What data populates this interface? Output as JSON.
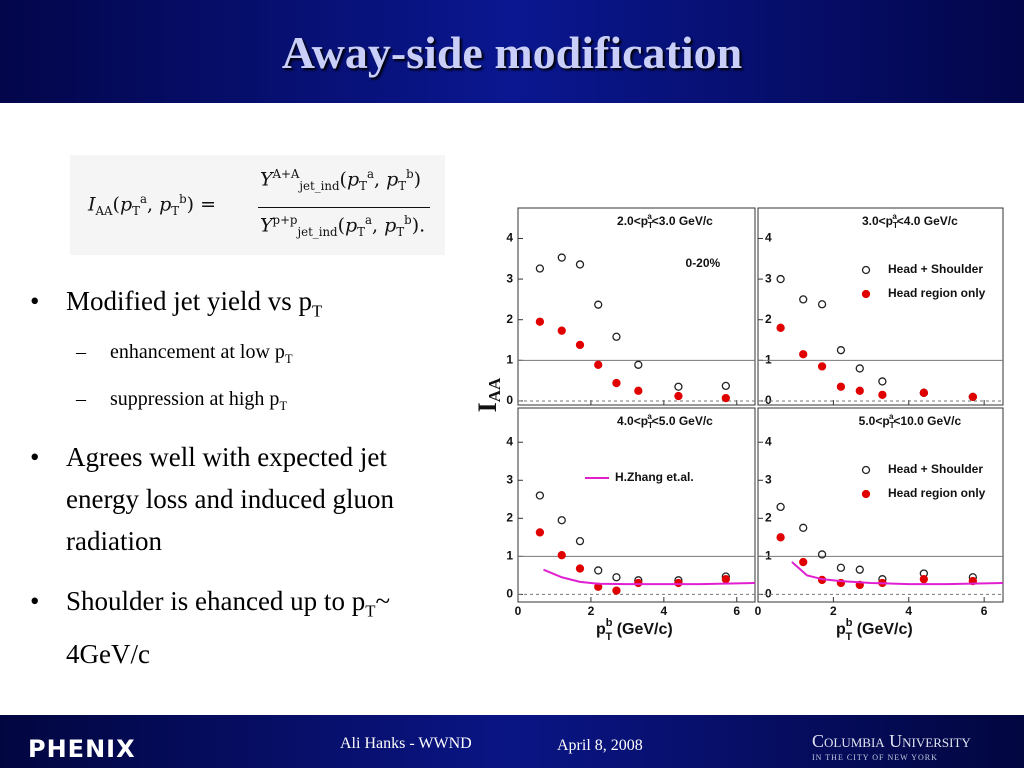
{
  "header": {
    "title": "Away-side modification"
  },
  "formula": {
    "symbol": "I",
    "symbol_sub": "AA",
    "open": "(",
    "p": "p",
    "p_sub": "T",
    "a": "a",
    "b": "b",
    "comma": ", ",
    "close": ")",
    "equals": "=",
    "yield": "Y",
    "yield_sub": "jet_ind",
    "numerator_sup": "A+A",
    "denominator_sup": "p+p",
    "period": "."
  },
  "bullets": [
    {
      "text": "Modified jet yield vs p",
      "sub": "T",
      "children": [
        {
          "text": "enhancement at low p",
          "sub": "T"
        },
        {
          "text": "suppression at high p",
          "sub": "T"
        }
      ]
    },
    {
      "text": "Agrees well with expected jet energy loss and induced gluon radiation"
    },
    {
      "text": "Shoulder is ehanced up to p",
      "sub": "T",
      "tail": "~ 4GeV/c"
    }
  ],
  "figure": {
    "ylabel": "I",
    "ylabel_sub": "AA",
    "xlabel_p": "p",
    "xlabel_sup": "b",
    "xlabel_sub": "T",
    "xlabel_unit": " (GeV/c)"
  },
  "chart_data": [
    {
      "type": "scatter",
      "title": {
        "prefix": "2.0<p",
        "sub": "T",
        "sup": "a",
        "suffix": "<3.0 GeV/c"
      },
      "annotation": "0-20%",
      "xlim": [
        0,
        6.5
      ],
      "ylim": [
        -0.1,
        4.75
      ],
      "xticks": [
        0,
        2,
        4,
        6
      ],
      "yticks": [
        0,
        1,
        2,
        3,
        4
      ],
      "xtick_labels": false,
      "hlines": [
        {
          "value": 1,
          "style": "solid"
        },
        {
          "value": 0,
          "style": "dashed"
        }
      ],
      "series": [
        {
          "marker": "open-circle",
          "color": "#222222",
          "x": [
            0.6,
            1.2,
            1.7,
            2.2,
            2.7,
            3.3,
            4.4,
            5.7
          ],
          "values": [
            3.26,
            3.53,
            3.36,
            2.37,
            1.58,
            0.89,
            0.35,
            0.37
          ]
        },
        {
          "marker": "filled-circle",
          "color": "#e00000",
          "x": [
            0.6,
            1.2,
            1.7,
            2.2,
            2.7,
            3.3,
            4.4,
            5.7
          ],
          "values": [
            1.95,
            1.73,
            1.38,
            0.89,
            0.44,
            0.25,
            0.12,
            0.07
          ]
        }
      ]
    },
    {
      "type": "scatter",
      "title": {
        "prefix": "3.0<p",
        "sub": "T",
        "sup": "a",
        "suffix": "<4.0 GeV/c"
      },
      "legend": "upper right",
      "xlim": [
        0,
        6.5
      ],
      "ylim": [
        -0.1,
        4.75
      ],
      "xticks": [
        0,
        2,
        4,
        6
      ],
      "yticks": [
        0,
        1,
        2,
        3,
        4
      ],
      "xtick_labels": false,
      "hlines": [
        {
          "value": 1,
          "style": "solid"
        },
        {
          "value": 0,
          "style": "dashed"
        }
      ],
      "series": [
        {
          "name": "Head + Shoulder",
          "marker": "open-circle",
          "color": "#222222",
          "x": [
            0.6,
            1.2,
            1.7,
            2.2,
            2.7,
            3.3,
            4.4,
            5.7
          ],
          "values": [
            3.0,
            2.5,
            2.38,
            1.25,
            0.8,
            0.48,
            0.2,
            0.1
          ]
        },
        {
          "name": "Head region only",
          "marker": "filled-circle",
          "color": "#e00000",
          "x": [
            0.6,
            1.2,
            1.7,
            2.2,
            2.7,
            3.3,
            4.4,
            5.7
          ],
          "values": [
            1.8,
            1.15,
            0.85,
            0.35,
            0.25,
            0.15,
            0.2,
            0.1
          ]
        }
      ]
    },
    {
      "type": "scatter",
      "title": {
        "prefix": "4.0<p",
        "sub": "T",
        "sup": "a",
        "suffix": "<5.0 GeV/c"
      },
      "legend": "upper left",
      "xlim": [
        0,
        6.5
      ],
      "ylim": [
        -0.2,
        4.9
      ],
      "xticks": [
        0,
        2,
        4,
        6
      ],
      "yticks": [
        0,
        1,
        2,
        3,
        4
      ],
      "xtick_labels": true,
      "hlines": [
        {
          "value": 1,
          "style": "solid"
        },
        {
          "value": 0,
          "style": "dashed"
        }
      ],
      "series": [
        {
          "marker": "open-circle",
          "color": "#222222",
          "x": [
            0.6,
            1.2,
            1.7,
            2.2,
            2.7,
            3.3,
            4.4,
            5.7
          ],
          "values": [
            2.6,
            1.95,
            1.4,
            0.63,
            0.45,
            0.37,
            0.37,
            0.47
          ]
        },
        {
          "marker": "filled-circle",
          "color": "#e00000",
          "x": [
            0.6,
            1.2,
            1.7,
            2.2,
            2.7,
            3.3,
            4.4,
            5.7
          ],
          "values": [
            1.63,
            1.03,
            0.68,
            0.2,
            0.1,
            0.3,
            0.3,
            0.4
          ]
        },
        {
          "name": "H.Zhang et.al.",
          "marker": "line",
          "color": "#e020d0",
          "x": [
            0.7,
            1.2,
            1.7,
            2.2,
            3,
            4,
            5,
            6.5
          ],
          "values": [
            0.65,
            0.45,
            0.33,
            0.28,
            0.27,
            0.27,
            0.27,
            0.3
          ]
        }
      ]
    },
    {
      "type": "scatter",
      "title": {
        "prefix": "5.0<p",
        "sub": "T",
        "sup": "a",
        "suffix": "<10.0 GeV/c"
      },
      "legend": "upper right",
      "xlim": [
        0,
        6.5
      ],
      "ylim": [
        -0.2,
        4.9
      ],
      "xticks": [
        0,
        2,
        4,
        6
      ],
      "yticks": [
        0,
        1,
        2,
        3,
        4
      ],
      "xtick_labels": true,
      "hlines": [
        {
          "value": 1,
          "style": "solid"
        },
        {
          "value": 0,
          "style": "dashed"
        }
      ],
      "series": [
        {
          "name": "Head + Shoulder",
          "marker": "open-circle",
          "color": "#222222",
          "x": [
            0.6,
            1.2,
            1.7,
            2.2,
            2.7,
            3.3,
            4.4,
            5.7
          ],
          "values": [
            2.3,
            1.75,
            1.05,
            0.7,
            0.65,
            0.4,
            0.55,
            0.45
          ]
        },
        {
          "name": "Head region only",
          "marker": "filled-circle",
          "color": "#e00000",
          "x": [
            0.6,
            1.2,
            1.7,
            2.2,
            2.7,
            3.3,
            4.4,
            5.7
          ],
          "values": [
            1.5,
            0.85,
            0.38,
            0.3,
            0.25,
            0.3,
            0.4,
            0.35
          ]
        },
        {
          "marker": "line",
          "color": "#e020d0",
          "x": [
            0.9,
            1.3,
            1.7,
            2.2,
            3,
            4,
            5,
            6.5
          ],
          "values": [
            0.85,
            0.5,
            0.4,
            0.35,
            0.3,
            0.27,
            0.27,
            0.3
          ]
        }
      ]
    }
  ],
  "footer": {
    "logo": "PHENIX",
    "author": "Ali Hanks - WWND",
    "date": "April 8, 2008",
    "university": "Columbia University",
    "university_sub": "IN THE CITY OF NEW YORK"
  }
}
